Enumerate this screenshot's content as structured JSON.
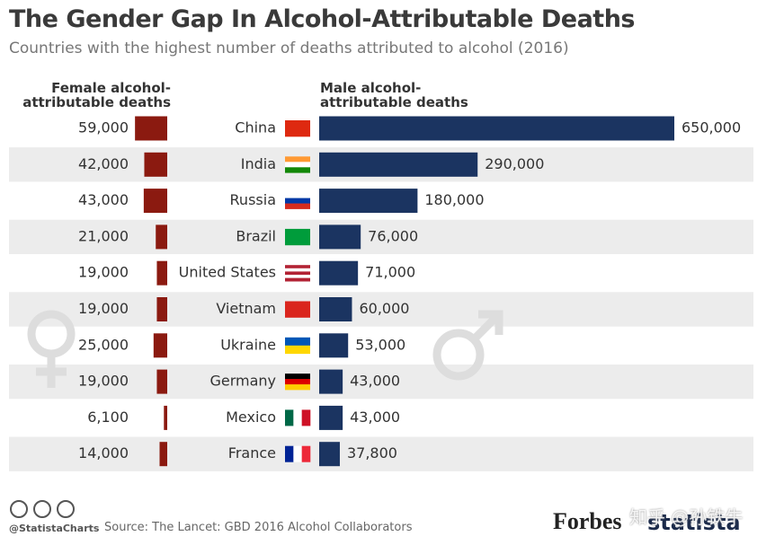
{
  "chart_data": {
    "type": "diverging-bar",
    "title": "The Gender Gap In Alcohol-Attributable Deaths",
    "subtitle": "Countries with the highest number of deaths attributed to alcohol (2016)",
    "categories": [
      "China",
      "India",
      "Russia",
      "Brazil",
      "United States",
      "Vietnam",
      "Ukraine",
      "Germany",
      "Mexico",
      "France"
    ],
    "series": [
      {
        "name": "Female alcohol-attributable deaths",
        "color": "#8b1a10",
        "values": [
          59000,
          42000,
          43000,
          21000,
          19000,
          19000,
          25000,
          19000,
          6100,
          14000
        ],
        "value_labels": [
          "59,000",
          "42,000",
          "43,000",
          "21,000",
          "19,000",
          "19,000",
          "25,000",
          "19,000",
          "6,100",
          "14,000"
        ]
      },
      {
        "name": "Male alcohol-attributable deaths",
        "color": "#1b3461",
        "values": [
          650000,
          290000,
          180000,
          76000,
          71000,
          60000,
          53000,
          43000,
          43000,
          37800
        ],
        "value_labels": [
          "650,000",
          "290,000",
          "180,000",
          "76,000",
          "71,000",
          "60,000",
          "53,000",
          "43,000",
          "43,000",
          "37,800"
        ]
      }
    ],
    "credit": "@StatistaCharts",
    "source": "Source: The Lancet: GBD 2016 Alcohol Collaborators",
    "brands": [
      "Forbes",
      "statista"
    ]
  },
  "watermark": "知乎 @孙铁牛"
}
